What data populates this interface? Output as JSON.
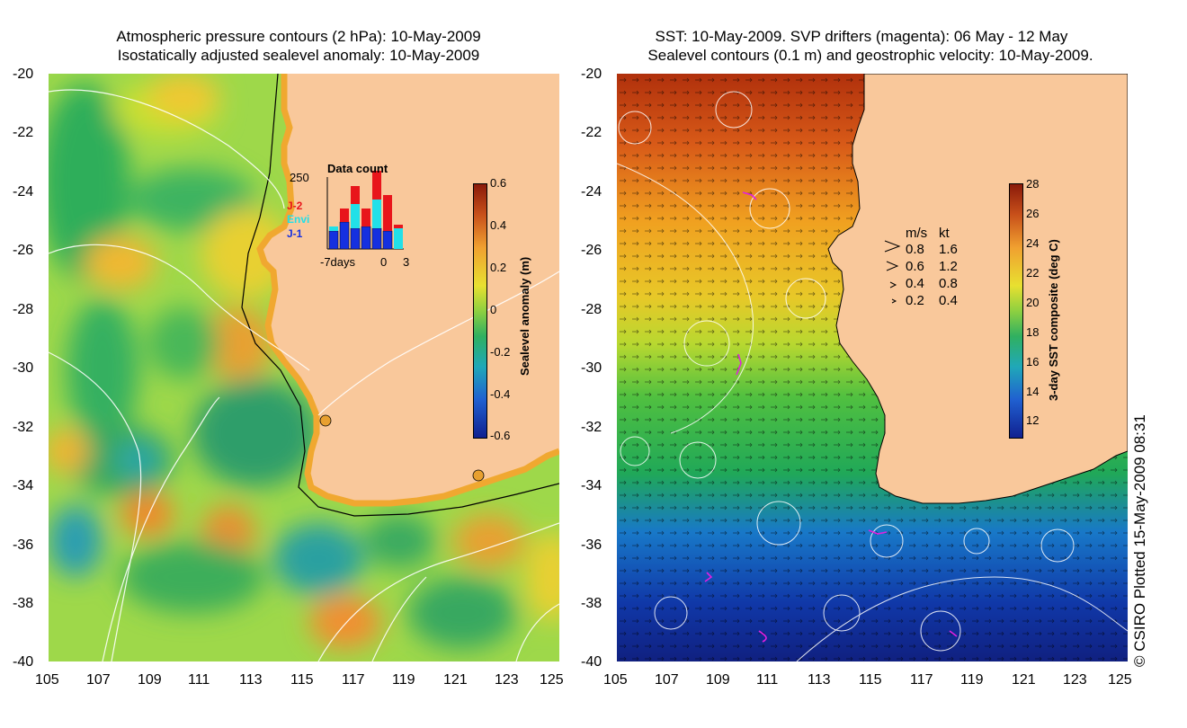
{
  "left_panel": {
    "title_line1": "Atmospheric pressure contours (2 hPa): 10-May-2009",
    "title_line2": "Isostatically adjusted sealevel anomaly: 10-May-2009",
    "y_ticks": [
      "-20",
      "-22",
      "-24",
      "-26",
      "-28",
      "-30",
      "-32",
      "-34",
      "-36",
      "-38",
      "-40"
    ],
    "x_ticks": [
      "105",
      "107",
      "109",
      "111",
      "113",
      "115",
      "117",
      "119",
      "121",
      "123",
      "125"
    ],
    "colorbar": {
      "label": "Sealevel anomaly (m)",
      "ticks": [
        "0.6",
        "0.4",
        "0.2",
        "0",
        "-0.2",
        "-0.4",
        "-0.6"
      ],
      "range": [
        -0.6,
        0.6
      ]
    },
    "inset": {
      "title": "Data count",
      "ymax_label": "250",
      "legend": [
        "J-2",
        "Envi",
        "J-1"
      ],
      "legend_colors": [
        "#e8151b",
        "#22e0e8",
        "#1530e0"
      ],
      "xlabel_left": "-7days",
      "xlabel_mid": "0",
      "xlabel_right": "3"
    }
  },
  "right_panel": {
    "title_line1": "SST: 10-May-2009. SVP drifters (magenta): 06 May - 12 May",
    "title_line2": "Sealevel contours (0.1 m) and geostrophic velocity: 10-May-2009.",
    "y_ticks": [
      "-20",
      "-22",
      "-24",
      "-26",
      "-28",
      "-30",
      "-32",
      "-34",
      "-36",
      "-38",
      "-40"
    ],
    "x_ticks": [
      "105",
      "107",
      "109",
      "111",
      "113",
      "115",
      "117",
      "119",
      "121",
      "123",
      "125"
    ],
    "colorbar": {
      "label": "3-day SST composite (deg C)",
      "ticks": [
        "28",
        "26",
        "24",
        "22",
        "20",
        "18",
        "16",
        "14",
        "12"
      ],
      "range": [
        11,
        28
      ]
    },
    "velocity_legend": {
      "header_ms": "m/s",
      "header_kt": "kt",
      "rows": [
        {
          "ms": "0.8",
          "kt": "1.6"
        },
        {
          "ms": "0.6",
          "kt": "1.2"
        },
        {
          "ms": "0.4",
          "kt": "0.8"
        },
        {
          "ms": "0.2",
          "kt": "0.4"
        }
      ]
    }
  },
  "copyright": "© CSIRO Plotted 15-May-2009 08:31",
  "colors": {
    "land": "#f9c89b",
    "contour": "#ffffff",
    "drifter": "#e020e0"
  }
}
